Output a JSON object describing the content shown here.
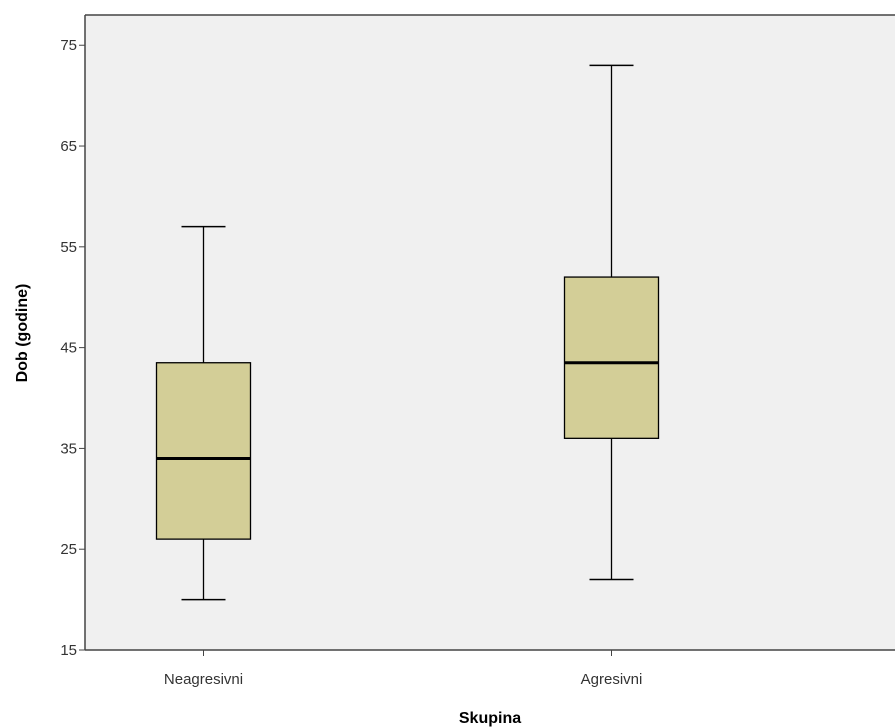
{
  "chart_data": {
    "type": "boxplot",
    "title": "",
    "xlabel": "Skupina",
    "ylabel": "Dob (godine)",
    "ylim": [
      15,
      78
    ],
    "yticks": [
      15,
      25,
      35,
      45,
      55,
      65,
      75
    ],
    "ytick_labels": [
      "15",
      "25",
      "35",
      "45",
      "55",
      "65",
      "75"
    ],
    "categories": [
      "Neagresivni",
      "Agresivni"
    ],
    "boxes": [
      {
        "category": "Neagresivni",
        "whisker_low": 20,
        "q1": 26,
        "median": 34,
        "q3": 43.5,
        "whisker_high": 57
      },
      {
        "category": "Agresivni",
        "whisker_low": 22,
        "q1": 36,
        "median": 43.5,
        "q3": 52,
        "whisker_high": 73
      }
    ],
    "grid": false,
    "colors": {
      "plot_background": "#f0f0f0",
      "box_fill": "#d3ce97",
      "stroke": "#000000",
      "axis": "#444444"
    }
  }
}
